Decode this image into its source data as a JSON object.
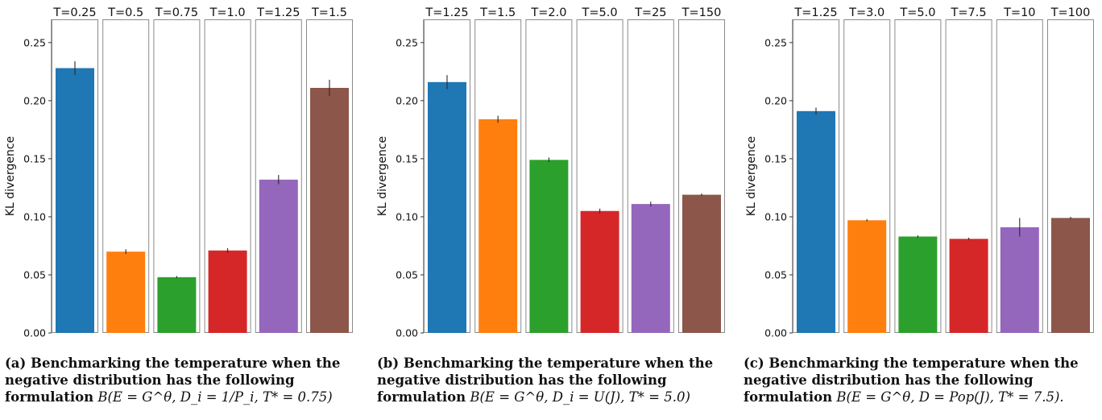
{
  "chart_data": [
    {
      "type": "bar",
      "categories": [
        "T=0.25",
        "T=0.5",
        "T=0.75",
        "T=1.0",
        "T=1.25",
        "T=1.5"
      ],
      "values": [
        0.228,
        0.07,
        0.048,
        0.071,
        0.132,
        0.211
      ],
      "errors": [
        0.006,
        0.002,
        0.001,
        0.002,
        0.004,
        0.007
      ],
      "colors": [
        "#1f77b4",
        "#ff7f0e",
        "#2ca02c",
        "#d62728",
        "#9467bd",
        "#8c564b"
      ],
      "ylabel": "KL divergence",
      "ylim": [
        0,
        0.27
      ],
      "yticks": [
        "0.00",
        "0.05",
        "0.10",
        "0.15",
        "0.20",
        "0.25"
      ],
      "caption": {
        "lead": "(a) Benchmarking the temperature when the negative distribution has the following formulation",
        "formula": "B(E = G^θ, D_i = 1/P_i, T* = 0.75)"
      }
    },
    {
      "type": "bar",
      "categories": [
        "T=1.25",
        "T=1.5",
        "T=2.0",
        "T=5.0",
        "T=25",
        "T=150"
      ],
      "values": [
        0.216,
        0.184,
        0.149,
        0.105,
        0.111,
        0.119
      ],
      "errors": [
        0.006,
        0.003,
        0.002,
        0.002,
        0.002,
        0.001
      ],
      "colors": [
        "#1f77b4",
        "#ff7f0e",
        "#2ca02c",
        "#d62728",
        "#9467bd",
        "#8c564b"
      ],
      "ylabel": "KL divergence",
      "ylim": [
        0,
        0.27
      ],
      "yticks": [
        "0.00",
        "0.05",
        "0.10",
        "0.15",
        "0.20",
        "0.25"
      ],
      "caption": {
        "lead": "(b) Benchmarking the temperature when the negative distribution has the following formulation",
        "formula": "B(E = G^θ, D_i = U(J), T* = 5.0)"
      }
    },
    {
      "type": "bar",
      "categories": [
        "T=1.25",
        "T=3.0",
        "T=5.0",
        "T=7.5",
        "T=10",
        "T=100"
      ],
      "values": [
        0.191,
        0.097,
        0.083,
        0.081,
        0.091,
        0.099
      ],
      "errors": [
        0.003,
        0.001,
        0.001,
        0.001,
        0.008,
        0.001
      ],
      "colors": [
        "#1f77b4",
        "#ff7f0e",
        "#2ca02c",
        "#d62728",
        "#9467bd",
        "#8c564b"
      ],
      "ylabel": "KL divergence",
      "ylim": [
        0,
        0.27
      ],
      "yticks": [
        "0.00",
        "0.05",
        "0.10",
        "0.15",
        "0.20",
        "0.25"
      ],
      "caption": {
        "lead": "(c) Benchmarking the temperature when the negative distribution has the following formulation",
        "formula": "B(E = G^θ, D = Pop(J), T* = 7.5)."
      }
    }
  ]
}
